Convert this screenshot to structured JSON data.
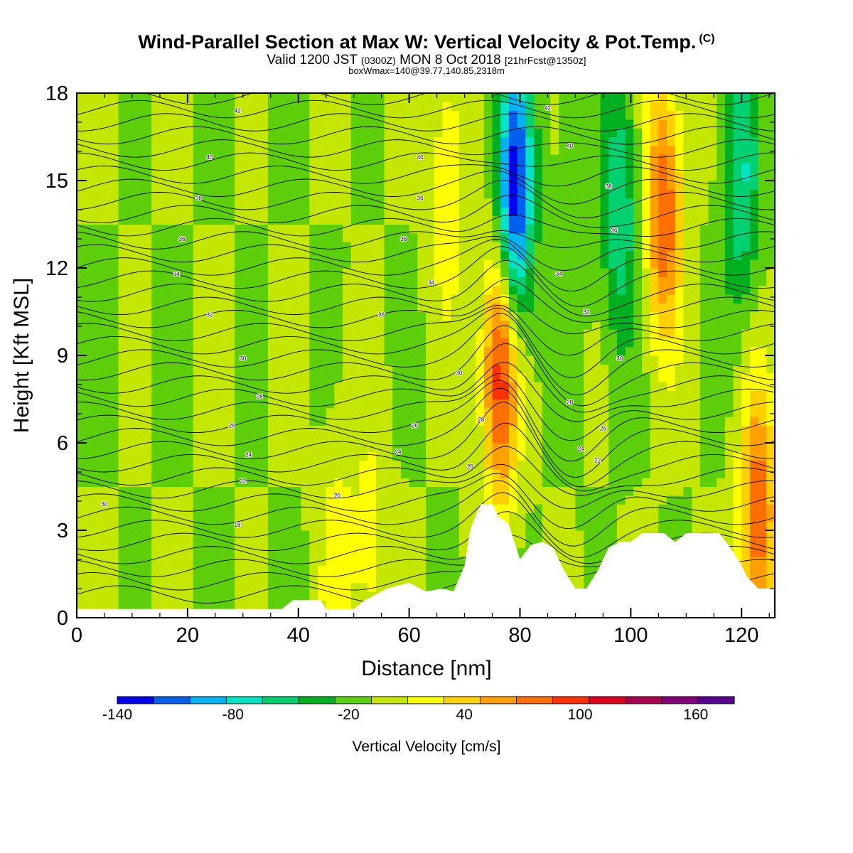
{
  "header": {
    "title": "Wind-Parallel Section at Max W: Vertical Velocity & Pot.Temp.",
    "copyright_mark": "(C)",
    "valid_prefix": "Valid 1200 JST",
    "valid_utc": "(0300Z)",
    "valid_date": "MON 8 Oct 2018",
    "forecast_info": "[21hrFcst@1350z]",
    "box_info": "boxWmax=140@39.77,140.85,2318m"
  },
  "chart_data": {
    "type": "heatmap",
    "xlabel": "Distance [nm]",
    "ylabel": "Height [Kft MSL]",
    "xlim": [
      0,
      126
    ],
    "ylim": [
      0,
      18
    ],
    "xticks": [
      0,
      20,
      40,
      60,
      80,
      100,
      120
    ],
    "yticks": [
      0,
      3,
      6,
      9,
      12,
      15,
      18
    ],
    "colorbar": {
      "label": "Vertical Velocity [cm/s]",
      "tick_labels": [
        -140,
        -80,
        -20,
        40,
        100,
        160
      ],
      "levels": [
        -140,
        -120,
        -100,
        -80,
        -60,
        -40,
        -20,
        0,
        20,
        40,
        60,
        80,
        100,
        120,
        140,
        160,
        180
      ],
      "colors": [
        "#0000ee",
        "#0060ee",
        "#00b4f4",
        "#00e4c4",
        "#00d070",
        "#00b020",
        "#5ccf0a",
        "#c4e600",
        "#ffff00",
        "#ffd000",
        "#ffa000",
        "#ff7000",
        "#ff3000",
        "#dd0020",
        "#aa0050",
        "#820078",
        "#5a0090"
      ]
    },
    "terrain_top_kft": [
      [
        0,
        0.3
      ],
      [
        8,
        0.3
      ],
      [
        16,
        0.3
      ],
      [
        24,
        0.3
      ],
      [
        32,
        0.3
      ],
      [
        37,
        0.3
      ],
      [
        39,
        0.6
      ],
      [
        44,
        0.6
      ],
      [
        45,
        0.3
      ],
      [
        50,
        0.3
      ],
      [
        52,
        0.6
      ],
      [
        56,
        1.0
      ],
      [
        60,
        1.2
      ],
      [
        63,
        0.9
      ],
      [
        66,
        1.0
      ],
      [
        68,
        0.9
      ],
      [
        70,
        1.8
      ],
      [
        71,
        3.0
      ],
      [
        72,
        3.5
      ],
      [
        73,
        3.9
      ],
      [
        75,
        3.9
      ],
      [
        76,
        3.5
      ],
      [
        78,
        3.2
      ],
      [
        80,
        2.0
      ],
      [
        82,
        2.5
      ],
      [
        84,
        2.6
      ],
      [
        86,
        2.4
      ],
      [
        88,
        1.6
      ],
      [
        90,
        1.0
      ],
      [
        92,
        1.0
      ],
      [
        94,
        1.6
      ],
      [
        96,
        2.4
      ],
      [
        98,
        2.6
      ],
      [
        100,
        2.6
      ],
      [
        102,
        2.9
      ],
      [
        104,
        2.9
      ],
      [
        106,
        2.9
      ],
      [
        108,
        2.6
      ],
      [
        110,
        2.9
      ],
      [
        112,
        2.9
      ],
      [
        114,
        2.9
      ],
      [
        116,
        2.9
      ],
      [
        118,
        2.4
      ],
      [
        120,
        1.8
      ],
      [
        121,
        1.4
      ],
      [
        122,
        1.2
      ],
      [
        123,
        1.0
      ],
      [
        124,
        1.0
      ],
      [
        126,
        1.0
      ]
    ],
    "velocity_features": [
      {
        "x": 79,
        "y": 14.5,
        "value": -140
      },
      {
        "x": 76.5,
        "y": 8.5,
        "value": 120
      },
      {
        "x": 106,
        "y": 14,
        "value": 100
      },
      {
        "x": 98,
        "y": 14,
        "value": -60
      },
      {
        "x": 120,
        "y": 15,
        "value": -60
      },
      {
        "x": 123,
        "y": 3.5,
        "value": 100
      },
      {
        "x": 67,
        "y": 15,
        "value": 40
      },
      {
        "x": 90,
        "y": 15,
        "value": -20
      },
      {
        "x": 53,
        "y": 2.3,
        "value": 30
      },
      {
        "x": 47,
        "y": 2.0,
        "value": 30
      }
    ],
    "theta_contours": [
      {
        "label": "18",
        "x": 29,
        "y": 3.2
      },
      {
        "label": "20",
        "x": 47,
        "y": 4.2
      },
      {
        "label": "22",
        "x": 30,
        "y": 4.7
      },
      {
        "label": "24",
        "x": 31,
        "y": 5.6
      },
      {
        "label": "26",
        "x": 28,
        "y": 6.6
      },
      {
        "label": "28",
        "x": 33,
        "y": 7.6
      },
      {
        "label": "30",
        "x": 30,
        "y": 8.9
      },
      {
        "label": "32",
        "x": 24,
        "y": 10.4
      },
      {
        "label": "34",
        "x": 18,
        "y": 11.8
      },
      {
        "label": "36",
        "x": 19,
        "y": 13.0
      },
      {
        "label": "38",
        "x": 22,
        "y": 14.4
      },
      {
        "label": "40",
        "x": 24,
        "y": 15.8
      },
      {
        "label": "42",
        "x": 29,
        "y": 17.4
      },
      {
        "label": "30",
        "x": 5,
        "y": 3.9
      },
      {
        "label": "24",
        "x": 58,
        "y": 5.7
      },
      {
        "label": "26",
        "x": 61,
        "y": 6.6
      },
      {
        "label": "30",
        "x": 69,
        "y": 8.4
      },
      {
        "label": "26",
        "x": 71,
        "y": 5.2
      },
      {
        "label": "28",
        "x": 73,
        "y": 6.8
      },
      {
        "label": "36",
        "x": 55,
        "y": 10.4
      },
      {
        "label": "36",
        "x": 59,
        "y": 13.0
      },
      {
        "label": "34",
        "x": 64,
        "y": 11.5
      },
      {
        "label": "36",
        "x": 62,
        "y": 14.4
      },
      {
        "label": "40",
        "x": 62,
        "y": 15.8
      },
      {
        "label": "42",
        "x": 85,
        "y": 17.5
      },
      {
        "label": "40",
        "x": 89,
        "y": 16.2
      },
      {
        "label": "38",
        "x": 96,
        "y": 14.8
      },
      {
        "label": "36",
        "x": 97,
        "y": 13.3
      },
      {
        "label": "34",
        "x": 87,
        "y": 11.8
      },
      {
        "label": "32",
        "x": 92,
        "y": 10.5
      },
      {
        "label": "30",
        "x": 98,
        "y": 8.9
      },
      {
        "label": "28",
        "x": 89,
        "y": 7.4
      },
      {
        "label": "26",
        "x": 95,
        "y": 6.5
      },
      {
        "label": "24",
        "x": 91,
        "y": 5.8
      },
      {
        "label": "22",
        "x": 94,
        "y": 5.4
      }
    ]
  }
}
